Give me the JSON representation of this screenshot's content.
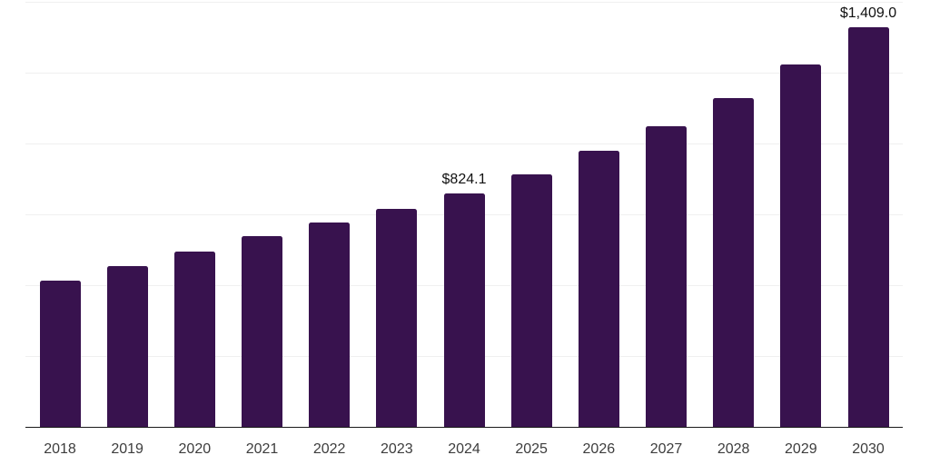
{
  "chart_data": {
    "type": "bar",
    "title": "",
    "xlabel": "",
    "ylabel": "",
    "categories": [
      "2018",
      "2019",
      "2020",
      "2021",
      "2022",
      "2023",
      "2024",
      "2025",
      "2026",
      "2027",
      "2028",
      "2029",
      "2030"
    ],
    "values": [
      517,
      567,
      619,
      672,
      722,
      770,
      824.1,
      890,
      974,
      1061,
      1160,
      1278,
      1409
    ],
    "data_labels": [
      "",
      "",
      "",
      "",
      "",
      "",
      "$824.1",
      "",
      "",
      "",
      "",
      "",
      "$1,409.0"
    ],
    "ylim": [
      0,
      1500
    ],
    "grid": true,
    "grid_step": 250,
    "y_tick_labels_shown": false,
    "legend": "none",
    "colors": {
      "bar": "#38124e",
      "grid": "#f0f0f0",
      "axis": "#1a1a1a",
      "tick_text": "#3d3d3d",
      "label_text": "#111111",
      "background": "#ffffff"
    }
  }
}
